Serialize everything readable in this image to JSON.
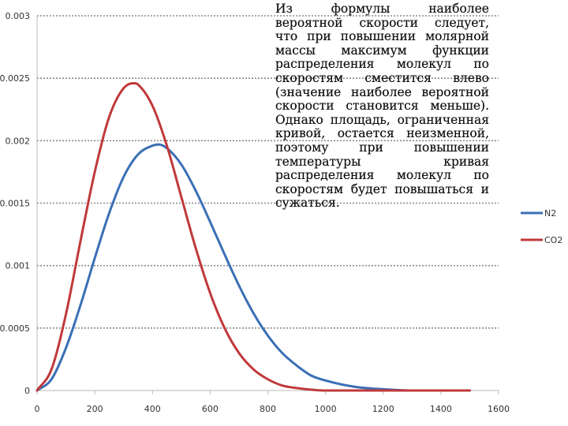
{
  "slide": {
    "text": "Из формулы наиболее вероятной скорости следует, что при повышении молярной массы максимум функции распределения молекул по скоростям сместится влево (значение наиболее вероятной скорости становится меньше). Однако площадь, ограниченная кривой, остается неизменной, поэтому при повышении температуры кривая распределения молекул по скоростям будет повышаться и сужаться."
  },
  "chart_data": {
    "type": "line",
    "title": "",
    "xlabel": "",
    "ylabel": "",
    "xlim": [
      0,
      1600
    ],
    "ylim": [
      0,
      0.003
    ],
    "x_ticks": [
      0,
      200,
      400,
      600,
      800,
      1000,
      1200,
      1400,
      1600
    ],
    "x_tick_labels": [
      "0",
      "200",
      "400",
      "600",
      "800",
      "1000",
      "1200",
      "1400",
      "1600"
    ],
    "y_ticks": [
      0,
      0.0005,
      0.001,
      0.0015,
      0.002,
      0.0025,
      0.003
    ],
    "y_tick_labels": [
      "0",
      "0.0005",
      "0.001",
      "0.0015",
      "0.002",
      "0.0025",
      "0.003"
    ],
    "grid": "horizontal-dashed",
    "legend_position": "right",
    "series": [
      {
        "name": "N2",
        "color": "#3a6fb5",
        "x": [
          0,
          50,
          100,
          150,
          200,
          250,
          300,
          350,
          400,
          422,
          450,
          500,
          550,
          600,
          650,
          700,
          750,
          800,
          850,
          900,
          950,
          1000,
          1100,
          1200,
          1300,
          1400,
          1500
        ],
        "y": [
          0,
          9e-05,
          0.00034,
          0.00068,
          0.00106,
          0.00142,
          0.00171,
          0.00189,
          0.00196,
          0.00197,
          0.00194,
          0.00181,
          0.0016,
          0.00135,
          0.00109,
          0.00084,
          0.00062,
          0.00044,
          0.0003,
          0.0002,
          0.00012,
          8e-05,
          3e-05,
          1e-05,
          0,
          0,
          0
        ]
      },
      {
        "name": "CO2",
        "color": "#c0393b",
        "x": [
          0,
          50,
          100,
          150,
          200,
          250,
          300,
          337,
          350,
          400,
          450,
          500,
          550,
          600,
          650,
          700,
          750,
          800,
          850,
          900,
          1000,
          1100,
          1200,
          1300,
          1400,
          1500
        ],
        "y": [
          0,
          0.00017,
          0.00061,
          0.00119,
          0.00175,
          0.00219,
          0.00242,
          0.00246,
          0.00245,
          0.00228,
          0.00196,
          0.00155,
          0.00114,
          0.00078,
          0.0005,
          0.0003,
          0.00017,
          9e-05,
          4e-05,
          2e-05,
          0,
          0,
          0,
          0,
          0,
          0
        ]
      }
    ]
  }
}
